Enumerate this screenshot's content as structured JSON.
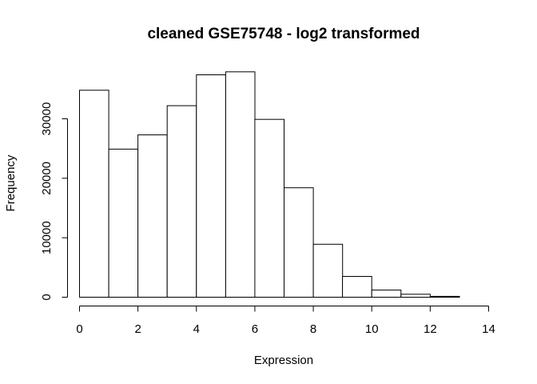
{
  "chart_data": {
    "type": "bar",
    "subtype": "histogram",
    "title": "cleaned GSE75748 - log2 transformed",
    "xlabel": "Expression",
    "ylabel": "Frequency",
    "bin_edges": [
      0,
      1,
      2,
      3,
      4,
      5,
      6,
      7,
      8,
      9,
      10,
      11,
      12,
      13,
      14
    ],
    "values": [
      34800,
      24900,
      27300,
      32200,
      37400,
      37900,
      29900,
      18400,
      8900,
      3500,
      1200,
      500,
      150,
      0
    ],
    "xlim": [
      0,
      14
    ],
    "ylim": [
      0,
      38000
    ],
    "x_ticks": [
      "0",
      "2",
      "4",
      "6",
      "8",
      "10",
      "12",
      "14"
    ],
    "y_ticks": [
      "0",
      "10000",
      "20000",
      "30000"
    ],
    "grid": false,
    "bar_fill": "#ffffff",
    "bar_stroke": "#000000"
  }
}
